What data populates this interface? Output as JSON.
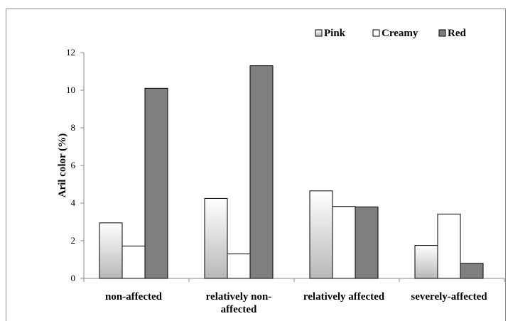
{
  "chart_data": {
    "type": "bar",
    "ylabel": "Aril color (%)",
    "xlabel": "",
    "title": "",
    "ylim": [
      0,
      12
    ],
    "yticks": [
      "0",
      "2",
      "4",
      "6",
      "8",
      "10",
      "12"
    ],
    "categories": [
      [
        "non-affected"
      ],
      [
        "relatively non-",
        "affected"
      ],
      [
        "relatively affected"
      ],
      [
        "severely-affected"
      ]
    ],
    "series": [
      {
        "name": "Pink",
        "values": [
          2.95,
          4.25,
          4.65,
          1.75
        ],
        "color": "gradient-gray",
        "legend": "Pink"
      },
      {
        "name": "Creamy",
        "values": [
          1.72,
          1.3,
          3.82,
          3.42
        ],
        "color": "#ffffff",
        "legend": "Creamy"
      },
      {
        "name": "Red",
        "values": [
          10.1,
          11.3,
          3.8,
          0.8
        ],
        "color": "#7f7f7f",
        "legend": "Red"
      }
    ],
    "legend_position": "top-right",
    "grid": false
  }
}
